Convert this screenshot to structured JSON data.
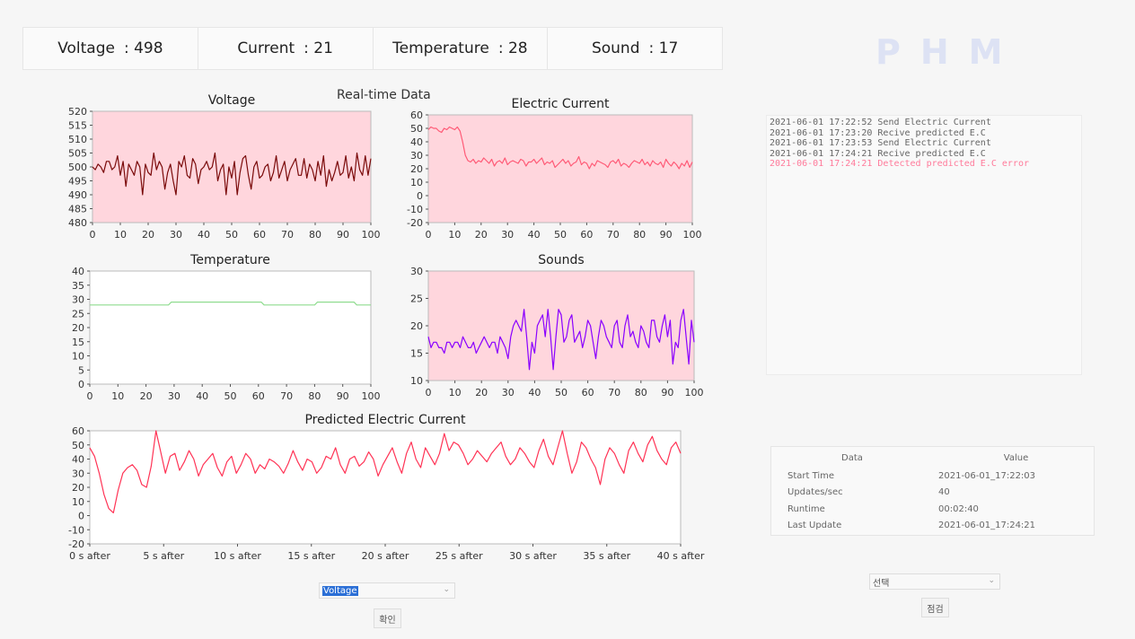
{
  "readouts": [
    {
      "label": "Voltage",
      "value": ": 498"
    },
    {
      "label": "Current",
      "value": ": 21"
    },
    {
      "label": "Temperature",
      "value": ": 28"
    },
    {
      "label": "Sound",
      "value": ": 17"
    }
  ],
  "phm_title": "PHM",
  "section_title": "Real-time Data",
  "log": {
    "entries": [
      {
        "text": "2021-06-01 17:22:52 Send Electric Current",
        "error": false
      },
      {
        "text": "2021-06-01 17:23:20 Recive predicted E.C",
        "error": false
      },
      {
        "text": "2021-06-01 17:23:53 Send Electric Current",
        "error": false
      },
      {
        "text": "2021-06-01 17:24:21 Recive predicted E.C",
        "error": false
      },
      {
        "text": "2021-06-01 17:24:21 Detected predicted E.C error",
        "error": true
      }
    ]
  },
  "info_table": {
    "col_data": "Data",
    "col_value": "Value",
    "rows": [
      {
        "label": "Start Time",
        "value": "2021-06-01_17:22:03"
      },
      {
        "label": "Updates/sec",
        "value": "40"
      },
      {
        "label": "Runtime",
        "value": "00:02:40"
      },
      {
        "label": "Last Update",
        "value": "2021-06-01_17:24:21"
      }
    ]
  },
  "left_select": {
    "value": "Voltage"
  },
  "left_button": {
    "label": "확인"
  },
  "right_select": {
    "value": "선택"
  },
  "right_button": {
    "label": "점검"
  },
  "chart_data": [
    {
      "type": "line",
      "title": "Voltage",
      "bg": "#ffd6dd",
      "color": "#7a0a0a",
      "xlim": [
        0,
        100
      ],
      "ylim": [
        480,
        520
      ],
      "xticks": [
        0,
        10,
        20,
        30,
        40,
        50,
        60,
        70,
        80,
        90,
        100
      ],
      "yticks": [
        480,
        485,
        490,
        495,
        500,
        505,
        510,
        515,
        520
      ],
      "series": [
        {
          "values": [
            500,
            499,
            501,
            500,
            498,
            502,
            502,
            499,
            500,
            504,
            497,
            502,
            493,
            501,
            499,
            497,
            502,
            500,
            490,
            501,
            498,
            497,
            505,
            499,
            502,
            500,
            492,
            498,
            501,
            495,
            490,
            502,
            500,
            504,
            497,
            496,
            503,
            501,
            494,
            499,
            500,
            502,
            499,
            500,
            505,
            495,
            499,
            501,
            490,
            500,
            496,
            502,
            490,
            498,
            503,
            504,
            497,
            492,
            500,
            502,
            496,
            497,
            500,
            501,
            495,
            498,
            504,
            496,
            499,
            502,
            495,
            499,
            501,
            503,
            497,
            497,
            503,
            496,
            501,
            499,
            495,
            502,
            497,
            504,
            493,
            499,
            495,
            498,
            502,
            497,
            498,
            504,
            496,
            500,
            495,
            505,
            499,
            497,
            504,
            497,
            503
          ]
        }
      ]
    },
    {
      "type": "line",
      "title": "Electric Current",
      "bg": "#ffd6dd",
      "color": "#ff5a76",
      "xlim": [
        0,
        100
      ],
      "ylim": [
        -20,
        60
      ],
      "xticks": [
        0,
        10,
        20,
        30,
        40,
        50,
        60,
        70,
        80,
        90,
        100
      ],
      "yticks": [
        -20,
        -10,
        0,
        10,
        20,
        30,
        40,
        50,
        60
      ],
      "series": [
        {
          "values": [
            49,
            51,
            50,
            50,
            48,
            47,
            50,
            49,
            51,
            50,
            49,
            51,
            48,
            40,
            30,
            26,
            25,
            27,
            24,
            26,
            25,
            28,
            26,
            24,
            27,
            22,
            25,
            26,
            24,
            28,
            23,
            25,
            26,
            25,
            24,
            27,
            26,
            22,
            25,
            25,
            27,
            24,
            26,
            28,
            23,
            25,
            24,
            26,
            21,
            23,
            25,
            27,
            24,
            26,
            22,
            24,
            25,
            29,
            23,
            25,
            24,
            20,
            24,
            22,
            26,
            25,
            24,
            23,
            21,
            25,
            26,
            24,
            27,
            22,
            24,
            23,
            21,
            24,
            26,
            25,
            24,
            27,
            23,
            25,
            22,
            26,
            24,
            23,
            25,
            21,
            27,
            24,
            22,
            25,
            23,
            20,
            24,
            22,
            26,
            21,
            25
          ]
        }
      ]
    },
    {
      "type": "line",
      "title": "Temperature",
      "bg": "#ffffff",
      "color": "#8fdc8f",
      "xlim": [
        0,
        100
      ],
      "ylim": [
        0,
        40
      ],
      "xticks": [
        0,
        10,
        20,
        30,
        40,
        50,
        60,
        70,
        80,
        90,
        100
      ],
      "yticks": [
        0,
        5,
        10,
        15,
        20,
        25,
        30,
        35,
        40
      ],
      "series": [
        {
          "values": [
            28,
            28,
            28,
            28,
            28,
            28,
            28,
            28,
            28,
            28,
            28,
            28,
            28,
            28,
            28,
            28,
            28,
            28,
            28,
            28,
            28,
            28,
            28,
            28,
            28,
            28,
            28,
            28,
            28,
            29,
            29,
            29,
            29,
            29,
            29,
            29,
            29,
            29,
            29,
            29,
            29,
            29,
            29,
            29,
            29,
            29,
            29,
            29,
            29,
            29,
            29,
            29,
            29,
            29,
            29,
            29,
            29,
            29,
            29,
            29,
            29,
            29,
            28,
            28,
            28,
            28,
            28,
            28,
            28,
            28,
            28,
            28,
            28,
            28,
            28,
            28,
            28,
            28,
            28,
            28,
            28,
            29,
            29,
            29,
            29,
            29,
            29,
            29,
            29,
            29,
            29,
            29,
            29,
            29,
            29,
            28,
            28,
            28,
            28,
            28,
            28
          ]
        }
      ]
    },
    {
      "type": "line",
      "title": "Sounds",
      "bg": "#ffd6dd",
      "color": "#8a00ff",
      "xlim": [
        0,
        100
      ],
      "ylim": [
        10,
        30
      ],
      "xticks": [
        0,
        10,
        20,
        30,
        40,
        50,
        60,
        70,
        80,
        90,
        100
      ],
      "yticks": [
        10,
        15,
        20,
        25,
        30
      ],
      "series": [
        {
          "values": [
            18,
            16,
            17,
            17,
            16,
            16,
            15,
            17,
            17,
            16,
            17,
            17,
            16,
            18,
            17,
            16,
            16,
            17,
            15,
            16,
            17,
            18,
            17,
            16,
            17,
            17,
            15,
            18,
            17,
            16,
            14,
            18,
            20,
            21,
            20,
            19,
            23,
            18,
            12,
            17,
            15,
            20,
            21,
            22,
            18,
            23,
            18,
            12,
            18,
            23,
            22,
            17,
            18,
            21,
            22,
            17,
            18,
            19,
            16,
            18,
            21,
            20,
            17,
            14,
            18,
            21,
            20,
            18,
            17,
            16,
            20,
            21,
            17,
            16,
            20,
            22,
            18,
            19,
            17,
            16,
            20,
            19,
            17,
            16,
            21,
            21,
            18,
            17,
            20,
            22,
            18,
            21,
            13,
            17,
            16,
            21,
            23,
            18,
            13,
            21,
            17
          ]
        }
      ]
    },
    {
      "type": "line",
      "title": "Predicted Electric Current",
      "bg": "#ffffff",
      "color": "#ff3355",
      "xlim": [
        0,
        40
      ],
      "ylim": [
        -20,
        60
      ],
      "xticks": [
        0,
        5,
        10,
        15,
        20,
        25,
        30,
        35,
        40
      ],
      "xticklabels": [
        "0 s after",
        "5 s after",
        "10 s after",
        "15 s after",
        "20 s after",
        "25 s after",
        "30 s after",
        "35 s after",
        "40 s after"
      ],
      "yticks": [
        -20,
        -10,
        0,
        10,
        20,
        30,
        40,
        50,
        60
      ],
      "series": [
        {
          "values": [
            48,
            42,
            30,
            15,
            5,
            2,
            18,
            30,
            34,
            36,
            32,
            22,
            20,
            35,
            60,
            45,
            30,
            42,
            44,
            32,
            38,
            46,
            40,
            28,
            36,
            40,
            44,
            34,
            28,
            38,
            42,
            30,
            36,
            44,
            40,
            30,
            36,
            33,
            40,
            38,
            35,
            30,
            37,
            46,
            38,
            32,
            40,
            38,
            30,
            34,
            42,
            40,
            48,
            36,
            30,
            40,
            42,
            35,
            38,
            45,
            40,
            28,
            36,
            42,
            48,
            38,
            30,
            44,
            52,
            40,
            34,
            48,
            42,
            36,
            44,
            58,
            46,
            52,
            50,
            44,
            36,
            40,
            46,
            42,
            38,
            44,
            48,
            52,
            42,
            36,
            40,
            48,
            44,
            38,
            34,
            46,
            54,
            42,
            36,
            48,
            60,
            44,
            30,
            38,
            52,
            48,
            40,
            34,
            22,
            40,
            48,
            44,
            36,
            30,
            46,
            52,
            44,
            38,
            50,
            56,
            46,
            40,
            36,
            48,
            52,
            44
          ]
        }
      ]
    }
  ]
}
